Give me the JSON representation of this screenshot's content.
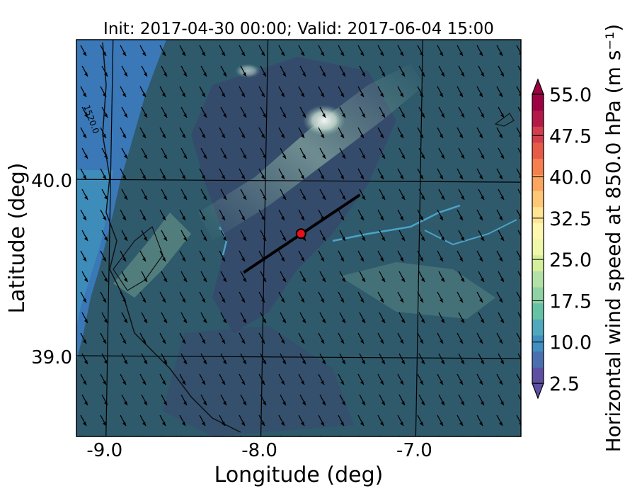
{
  "title": "Init: 2017-04-30 00:00; Valid: 2017-06-04 15:00",
  "map": {
    "xlabel": "Longitude (deg)",
    "ylabel": "Latitude (deg)",
    "xticks": [
      "-9.0",
      "-8.0",
      "-7.0"
    ],
    "yticks": [
      "40.0",
      "39.0"
    ],
    "contour_label": "1520.0",
    "grid": true,
    "background_color": "#2f5a6c",
    "coast_sea_color": "#3a78b8"
  },
  "cross_section": {
    "start": {
      "lon": -8.12,
      "lat": 39.48
    },
    "end": {
      "lon": -7.37,
      "lat": 39.92
    },
    "center": {
      "lon": -7.75,
      "lat": 39.7
    },
    "line_color": "#000000",
    "marker_color": "#e8101a"
  },
  "colorbar": {
    "label": "Horizontal wind speed at 850.0 hPa (m s⁻¹)",
    "ticks": [
      "55.0",
      "47.5",
      "40.0",
      "32.5",
      "25.0",
      "17.5",
      "10.0",
      "2.5"
    ],
    "levels": [
      2.5,
      55.0
    ],
    "colormap": "Spectral_r",
    "colors": [
      "#5e4fa2",
      "#4a6fb0",
      "#3f8fc0",
      "#4fa8bc",
      "#66c2a5",
      "#8fd2a4",
      "#b3e0a6",
      "#d6ef9b",
      "#eef8a8",
      "#fef7b0",
      "#fee493",
      "#fdc776",
      "#fba55f",
      "#f67f4f",
      "#e75a47",
      "#d33e4f",
      "#b41947",
      "#9e0142"
    ]
  },
  "wind_barbs": {
    "direction": "north-westerly",
    "arrow_color": "#000000"
  }
}
